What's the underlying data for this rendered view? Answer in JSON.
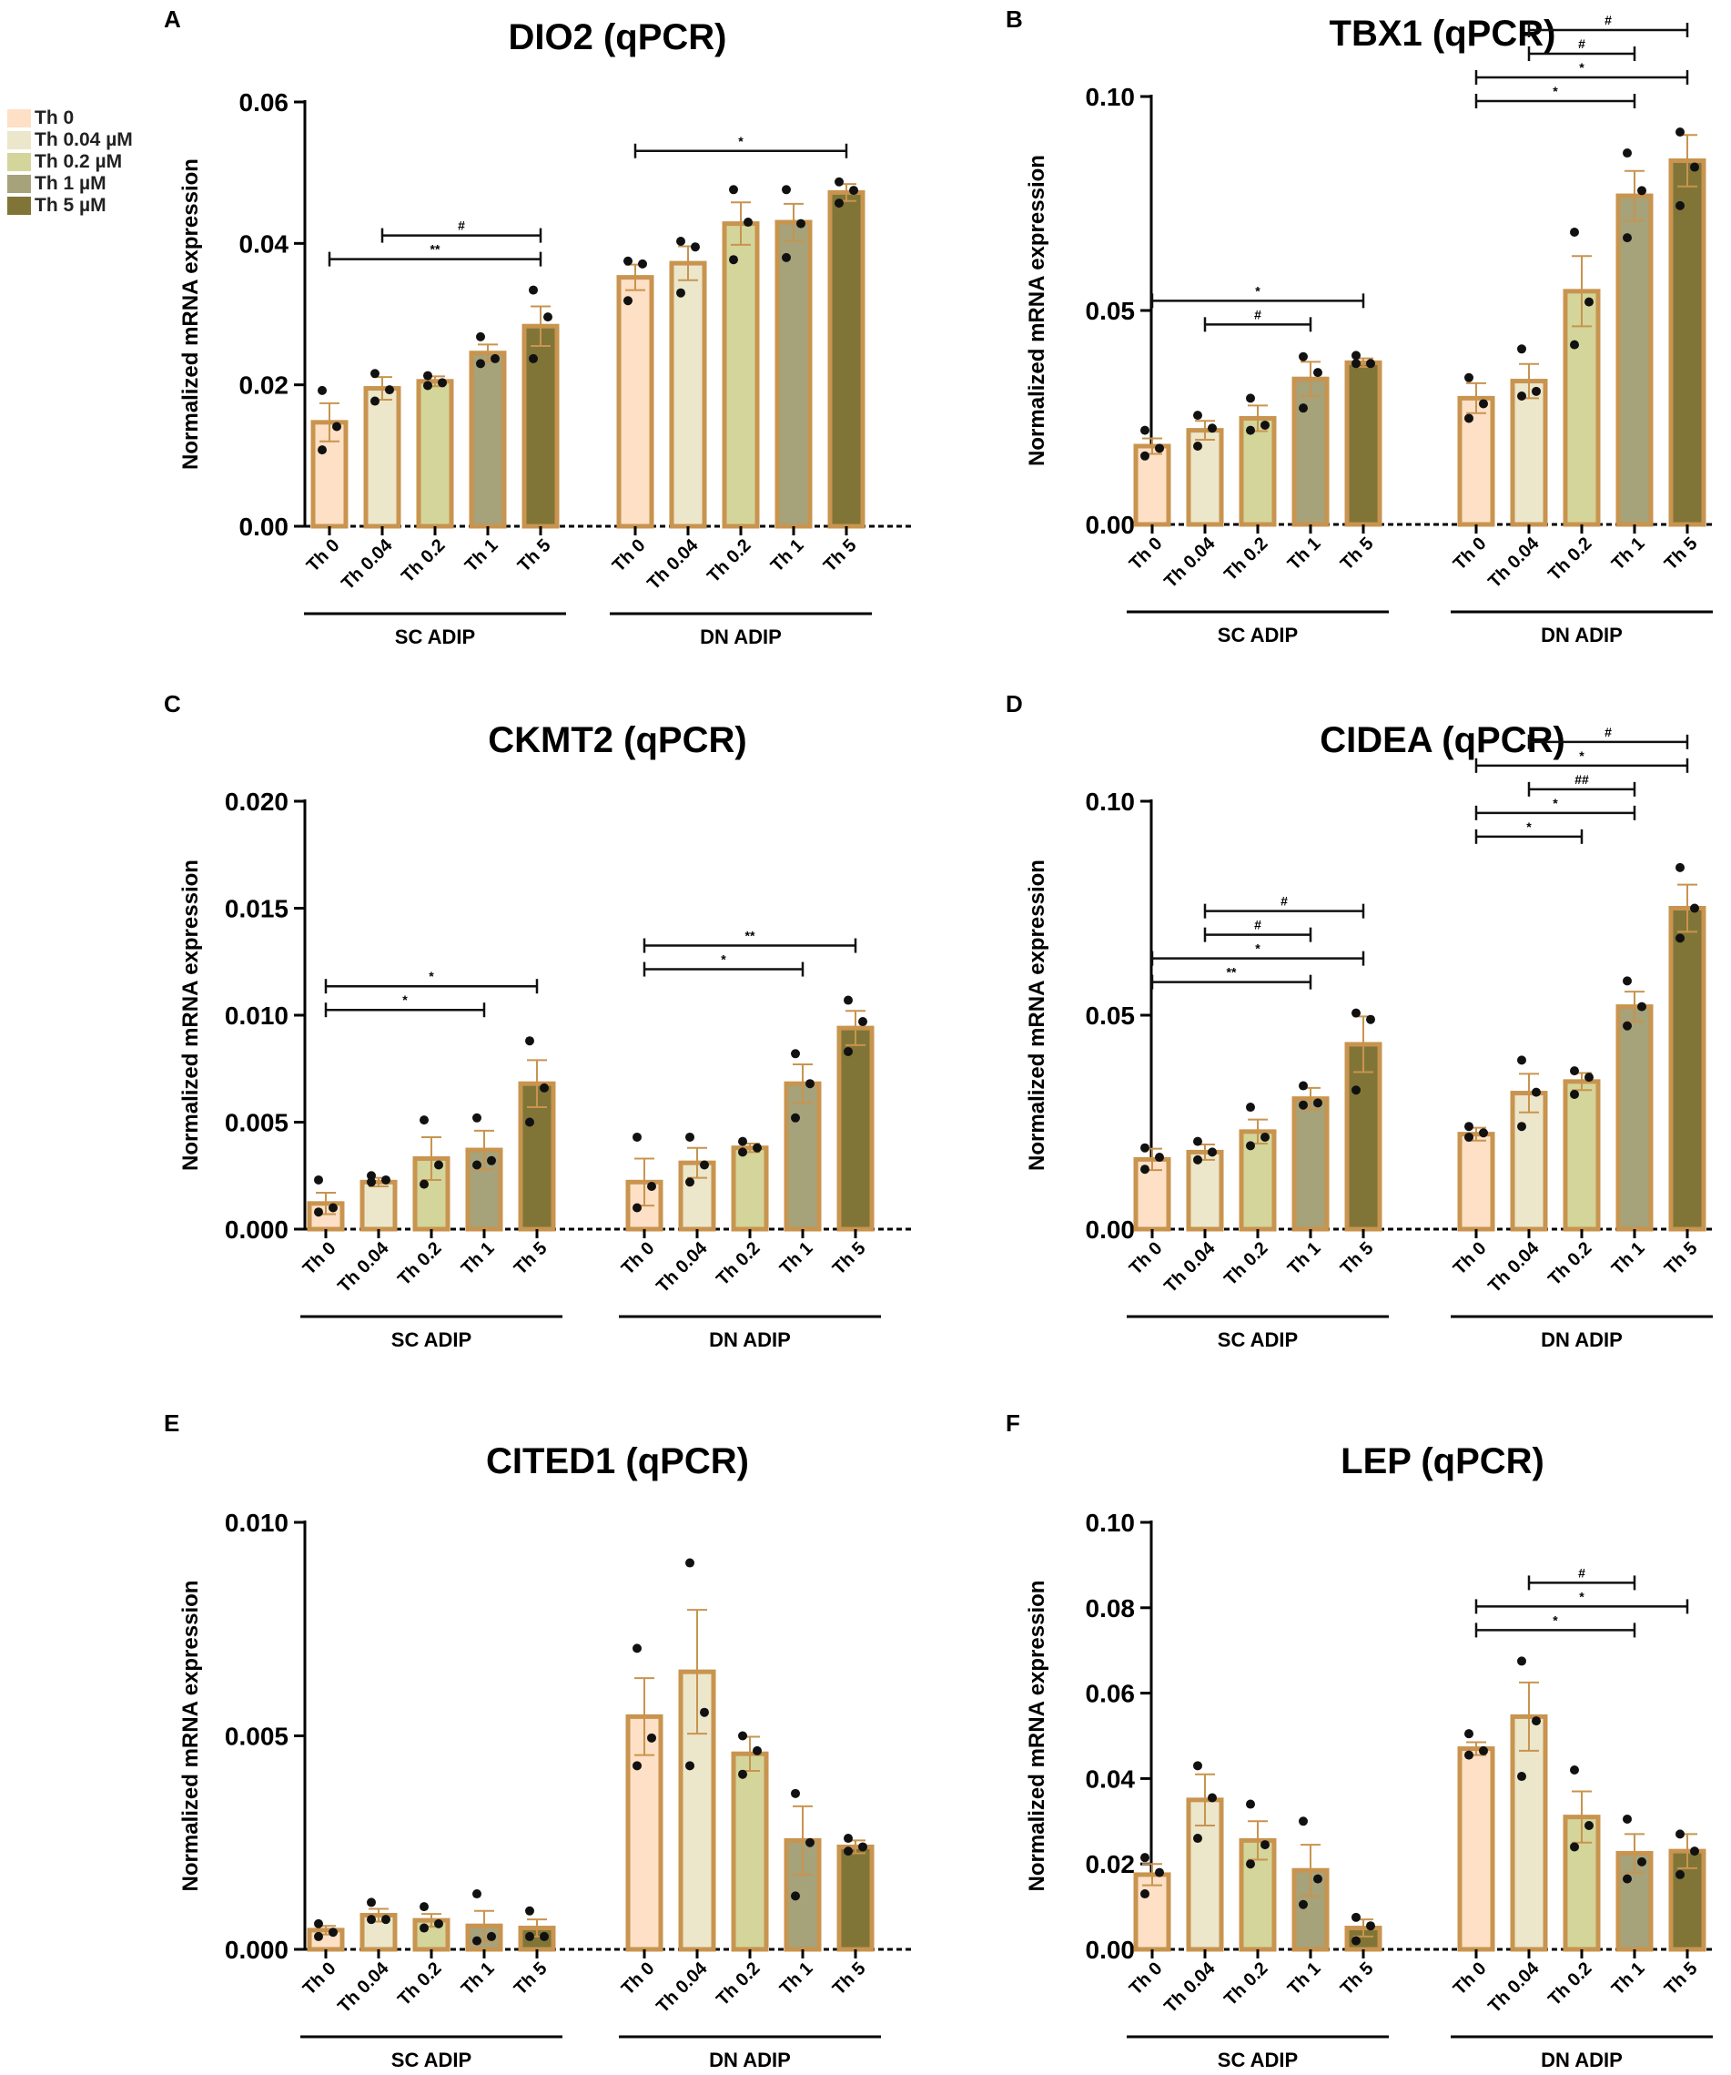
{
  "figure": {
    "panels_count": 6
  },
  "legend": {
    "items": [
      {
        "label": "Th 0",
        "color": "#fde0c5"
      },
      {
        "label": "Th 0.04 µM",
        "color": "#ece6cb"
      },
      {
        "label": "Th 0.2 µM",
        "color": "#d4d59a"
      },
      {
        "label": "Th 1 µM",
        "color": "#a6a27a"
      },
      {
        "label": "Th 5 µM",
        "color": "#807536"
      }
    ]
  },
  "styles": {
    "bar_edge_color": "#c8944f",
    "error_color": "#c8944f",
    "dot_color": "#111111",
    "bracket_color": "#111111"
  },
  "chart_data": [
    {
      "type": "bar",
      "panel_letter": "A",
      "title": "DIO2 (qPCR)",
      "ylabel": "Normalized mRNA expression",
      "ylim": [
        0,
        0.06
      ],
      "yticks": [
        "0.00",
        "0.02",
        "0.04",
        "0.06"
      ],
      "groups": [
        {
          "name": "SC  ADIP",
          "categories": [
            "Th 0",
            "Th 0.04",
            "Th 0.2",
            "Th 1",
            "Th 5"
          ],
          "values": [
            0.0147,
            0.0195,
            0.0205,
            0.0245,
            0.0283
          ],
          "errors": [
            0.0027,
            0.0016,
            0.0007,
            0.0012,
            0.0028
          ],
          "points": [
            [
              0.0192,
              0.0141,
              0.0108
            ],
            [
              0.0216,
              0.0193,
              0.0177
            ],
            [
              0.0213,
              0.0203,
              0.0199
            ],
            [
              0.0268,
              0.0237,
              0.023
            ],
            [
              0.0334,
              0.0296,
              0.0237
            ]
          ]
        },
        {
          "name": "DN ADIP",
          "categories": [
            "Th 0",
            "Th 0.04",
            "Th 0.2",
            "Th 1",
            "Th 5"
          ],
          "values": [
            0.0352,
            0.0372,
            0.0428,
            0.043,
            0.0472
          ],
          "errors": [
            0.0018,
            0.0024,
            0.003,
            0.0026,
            0.0012
          ],
          "points": [
            [
              0.0375,
              0.0371,
              0.0319
            ],
            [
              0.0403,
              0.0395,
              0.033
            ],
            [
              0.0476,
              0.043,
              0.0377
            ],
            [
              0.0476,
              0.0428,
              0.038
            ],
            [
              0.0487,
              0.0475,
              0.0457
            ]
          ]
        }
      ],
      "brackets": [
        {
          "group": 0,
          "from": 1,
          "to": 4,
          "level": 1,
          "label": "#"
        },
        {
          "group": 0,
          "from": 0,
          "to": 4,
          "level": 0,
          "label": "**"
        },
        {
          "group": 1,
          "from": 0,
          "to": 4,
          "level": 0,
          "label": "*"
        }
      ]
    },
    {
      "type": "bar",
      "panel_letter": "B",
      "title": "TBX1 (qPCR)",
      "ylabel": "Normalized mRNA expression",
      "ylim": [
        0,
        0.1
      ],
      "yticks": [
        "0.00",
        "0.05",
        "0.10"
      ],
      "groups": [
        {
          "name": "SC  ADIP",
          "categories": [
            "Th 0",
            "Th 0.04",
            "Th 0.2",
            "Th 1",
            "Th 5"
          ],
          "values": [
            0.0183,
            0.022,
            0.0248,
            0.034,
            0.0378
          ],
          "errors": [
            0.0018,
            0.0022,
            0.003,
            0.004,
            0.001
          ],
          "points": [
            [
              0.022,
              0.0178,
              0.016
            ],
            [
              0.0255,
              0.0225,
              0.0183
            ],
            [
              0.0295,
              0.0232,
              0.022
            ],
            [
              0.0392,
              0.0355,
              0.0272
            ],
            [
              0.0395,
              0.0376,
              0.0376
            ]
          ]
        },
        {
          "name": "DN ADIP",
          "categories": [
            "Th 0",
            "Th 0.04",
            "Th 0.2",
            "Th 1",
            "Th 5"
          ],
          "values": [
            0.0295,
            0.0335,
            0.0545,
            0.0768,
            0.085
          ],
          "errors": [
            0.0035,
            0.004,
            0.0082,
            0.0058,
            0.006
          ],
          "points": [
            [
              0.0343,
              0.0282,
              0.0248
            ],
            [
              0.041,
              0.0311,
              0.03
            ],
            [
              0.0683,
              0.052,
              0.042
            ],
            [
              0.0868,
              0.078,
              0.067
            ],
            [
              0.0917,
              0.0835,
              0.0745
            ]
          ]
        }
      ],
      "brackets": [
        {
          "group": 0,
          "from": 0,
          "to": 4,
          "level": 1,
          "label": "*"
        },
        {
          "group": 0,
          "from": 1,
          "to": 3,
          "level": 0,
          "label": "#"
        },
        {
          "group": 1,
          "from": 0,
          "to": 3,
          "level": 0,
          "label": "*"
        },
        {
          "group": 1,
          "from": 0,
          "to": 4,
          "level": 1,
          "label": "*"
        },
        {
          "group": 1,
          "from": 1,
          "to": 3,
          "level": 2,
          "label": "#"
        },
        {
          "group": 1,
          "from": 1,
          "to": 4,
          "level": 3,
          "label": "#"
        }
      ]
    },
    {
      "type": "bar",
      "panel_letter": "C",
      "title": "CKMT2 (qPCR)",
      "ylabel": "Normalized mRNA expression",
      "ylim": [
        0,
        0.02
      ],
      "yticks": [
        "0.000",
        "0.005",
        "0.010",
        "0.015",
        "0.020"
      ],
      "groups": [
        {
          "name": "SC  ADIP",
          "categories": [
            "Th 0",
            "Th 0.04",
            "Th 0.2",
            "Th 1",
            "Th 5"
          ],
          "values": [
            0.0012,
            0.0022,
            0.0033,
            0.0037,
            0.0068
          ],
          "errors": [
            0.0005,
            0.0002,
            0.001,
            0.0009,
            0.0011
          ],
          "points": [
            [
              0.0023,
              0.001,
              0.0008
            ],
            [
              0.0025,
              0.0023,
              0.0022
            ],
            [
              0.0051,
              0.003,
              0.0021
            ],
            [
              0.0052,
              0.0032,
              0.003
            ],
            [
              0.0088,
              0.0066,
              0.005
            ]
          ]
        },
        {
          "name": "DN ADIP",
          "categories": [
            "Th 0",
            "Th 0.04",
            "Th 0.2",
            "Th 1",
            "Th 5"
          ],
          "values": [
            0.0022,
            0.0031,
            0.0038,
            0.0068,
            0.0094
          ],
          "errors": [
            0.0011,
            0.0007,
            0.0002,
            0.0009,
            0.0008
          ],
          "points": [
            [
              0.0043,
              0.002,
              0.001
            ],
            [
              0.0043,
              0.003,
              0.0022
            ],
            [
              0.0041,
              0.0038,
              0.0036
            ],
            [
              0.0082,
              0.0068,
              0.0052
            ],
            [
              0.0107,
              0.0097,
              0.0083
            ]
          ]
        }
      ],
      "brackets": [
        {
          "group": 0,
          "from": 0,
          "to": 4,
          "level": 1,
          "label": "*"
        },
        {
          "group": 0,
          "from": 0,
          "to": 3,
          "level": 0,
          "label": "*"
        },
        {
          "group": 1,
          "from": 0,
          "to": 4,
          "level": 1,
          "label": "**"
        },
        {
          "group": 1,
          "from": 0,
          "to": 3,
          "level": 0,
          "label": "*"
        }
      ]
    },
    {
      "type": "bar",
      "panel_letter": "D",
      "title": "CIDEA (qPCR)",
      "ylabel": "Normalized mRNA expression",
      "ylim": [
        0,
        0.1
      ],
      "yticks": [
        "0.00",
        "0.05",
        "0.10"
      ],
      "groups": [
        {
          "name": "SC  ADIP",
          "categories": [
            "Th 0",
            "Th 0.04",
            "Th 0.2",
            "Th 1",
            "Th 5"
          ],
          "values": [
            0.0163,
            0.018,
            0.0228,
            0.0305,
            0.0432
          ],
          "errors": [
            0.0025,
            0.0018,
            0.0028,
            0.0025,
            0.0065
          ],
          "points": [
            [
              0.019,
              0.0168,
              0.014
            ],
            [
              0.0205,
              0.018,
              0.0162
            ],
            [
              0.0285,
              0.0215,
              0.0195
            ],
            [
              0.0335,
              0.0295,
              0.029
            ],
            [
              0.0505,
              0.049,
              0.0325
            ]
          ]
        },
        {
          "name": "DN ADIP",
          "categories": [
            "Th 0",
            "Th 0.04",
            "Th 0.2",
            "Th 1",
            "Th 5"
          ],
          "values": [
            0.0222,
            0.0318,
            0.0345,
            0.052,
            0.075
          ],
          "errors": [
            0.0015,
            0.0045,
            0.002,
            0.0035,
            0.0055
          ],
          "points": [
            [
              0.024,
              0.0225,
              0.0215
            ],
            [
              0.0395,
              0.032,
              0.024
            ],
            [
              0.037,
              0.0355,
              0.0315
            ],
            [
              0.058,
              0.052,
              0.0475
            ],
            [
              0.0845,
              0.075,
              0.068
            ]
          ]
        }
      ],
      "brackets": [
        {
          "group": 0,
          "from": 0,
          "to": 3,
          "level": 0,
          "label": "**"
        },
        {
          "group": 0,
          "from": 0,
          "to": 4,
          "level": 1,
          "label": "*"
        },
        {
          "group": 0,
          "from": 1,
          "to": 3,
          "level": 2,
          "label": "#"
        },
        {
          "group": 0,
          "from": 1,
          "to": 4,
          "level": 3,
          "label": "#"
        },
        {
          "group": 1,
          "from": 0,
          "to": 2,
          "level": 0,
          "label": "*"
        },
        {
          "group": 1,
          "from": 0,
          "to": 3,
          "level": 1,
          "label": "*"
        },
        {
          "group": 1,
          "from": 1,
          "to": 3,
          "level": 2,
          "label": "##"
        },
        {
          "group": 1,
          "from": 0,
          "to": 4,
          "level": 3,
          "label": "*"
        },
        {
          "group": 1,
          "from": 1,
          "to": 4,
          "level": 4,
          "label": "#"
        }
      ]
    },
    {
      "type": "bar",
      "panel_letter": "E",
      "title": "CITED1 (qPCR)",
      "ylabel": "Normalized mRNA expression",
      "ylim": [
        0,
        0.01
      ],
      "yticks": [
        "0.000",
        "0.005",
        "0.010"
      ],
      "groups": [
        {
          "name": "SC  ADIP",
          "categories": [
            "Th 0",
            "Th 0.04",
            "Th 0.2",
            "Th 1",
            "Th 5"
          ],
          "values": [
            0.00045,
            0.0008,
            0.00068,
            0.00055,
            0.0005
          ],
          "errors": [
            0.0001,
            0.00015,
            0.00015,
            0.00035,
            0.0002
          ],
          "points": [
            [
              0.0006,
              0.0004,
              0.0003
            ],
            [
              0.0011,
              0.0007,
              0.0007
            ],
            [
              0.001,
              0.0006,
              0.0005
            ],
            [
              0.0013,
              0.0003,
              0.0002
            ],
            [
              0.0009,
              0.0003,
              0.0003
            ]
          ]
        },
        {
          "name": "DN ADIP",
          "categories": [
            "Th 0",
            "Th 0.04",
            "Th 0.2",
            "Th 1",
            "Th 5"
          ],
          "values": [
            0.00545,
            0.0065,
            0.00458,
            0.00255,
            0.0024
          ],
          "errors": [
            0.0009,
            0.00145,
            0.0004,
            0.0008,
            0.00015
          ],
          "points": [
            [
              0.00705,
              0.00495,
              0.0043
            ],
            [
              0.00905,
              0.00555,
              0.0043
            ],
            [
              0.005,
              0.00465,
              0.0041
            ],
            [
              0.00365,
              0.0025,
              0.00125
            ],
            [
              0.0026,
              0.0024,
              0.0023
            ]
          ]
        }
      ],
      "brackets": []
    },
    {
      "type": "bar",
      "panel_letter": "F",
      "title": "LEP (qPCR)",
      "ylabel": "Normalized mRNA expression",
      "ylim": [
        0,
        0.1
      ],
      "yticks": [
        "0.00",
        "0.02",
        "0.04",
        "0.06",
        "0.08",
        "0.10"
      ],
      "groups": [
        {
          "name": "SC  ADIP",
          "categories": [
            "Th 0",
            "Th 0.04",
            "Th 0.2",
            "Th 1",
            "Th 5"
          ],
          "values": [
            0.0175,
            0.035,
            0.0255,
            0.0185,
            0.005
          ],
          "errors": [
            0.0025,
            0.006,
            0.0045,
            0.006,
            0.002
          ],
          "points": [
            [
              0.0215,
              0.018,
              0.013
            ],
            [
              0.043,
              0.0355,
              0.026
            ],
            [
              0.034,
              0.0245,
              0.02
            ],
            [
              0.03,
              0.0165,
              0.0105
            ],
            [
              0.0075,
              0.0055,
              0.002
            ]
          ]
        },
        {
          "name": "DN ADIP",
          "categories": [
            "Th 0",
            "Th 0.04",
            "Th 0.2",
            "Th 1",
            "Th 5"
          ],
          "values": [
            0.047,
            0.0545,
            0.031,
            0.0225,
            0.023
          ],
          "errors": [
            0.0015,
            0.008,
            0.006,
            0.0045,
            0.004
          ],
          "points": [
            [
              0.0505,
              0.0465,
              0.0455
            ],
            [
              0.0675,
              0.0535,
              0.0405
            ],
            [
              0.042,
              0.029,
              0.024
            ],
            [
              0.0305,
              0.0205,
              0.0165
            ],
            [
              0.027,
              0.023,
              0.0175
            ]
          ]
        }
      ],
      "brackets": [
        {
          "group": 1,
          "from": 0,
          "to": 3,
          "level": 0,
          "label": "*"
        },
        {
          "group": 1,
          "from": 0,
          "to": 4,
          "level": 1,
          "label": "*"
        },
        {
          "group": 1,
          "from": 1,
          "to": 3,
          "level": 2,
          "label": "#"
        }
      ]
    }
  ]
}
